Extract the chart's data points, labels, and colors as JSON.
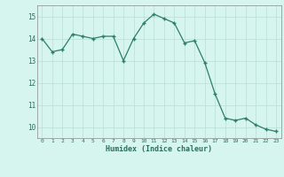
{
  "x": [
    0,
    1,
    2,
    3,
    4,
    5,
    6,
    7,
    8,
    9,
    10,
    11,
    12,
    13,
    14,
    15,
    16,
    17,
    18,
    19,
    20,
    21,
    22,
    23
  ],
  "y": [
    14.0,
    13.4,
    13.5,
    14.2,
    14.1,
    14.0,
    14.1,
    14.1,
    13.0,
    14.0,
    14.7,
    15.1,
    14.9,
    14.7,
    13.8,
    13.9,
    12.9,
    11.5,
    10.4,
    10.3,
    10.4,
    10.1,
    9.9,
    9.8
  ],
  "title": "",
  "xlabel": "Humidex (Indice chaleur)",
  "ylabel": "",
  "xlim": [
    -0.5,
    23.5
  ],
  "ylim": [
    9.5,
    15.5
  ],
  "yticks": [
    10,
    11,
    12,
    13,
    14,
    15
  ],
  "xticks": [
    0,
    1,
    2,
    3,
    4,
    5,
    6,
    7,
    8,
    9,
    10,
    11,
    12,
    13,
    14,
    15,
    16,
    17,
    18,
    19,
    20,
    21,
    22,
    23
  ],
  "line_color": "#2d7d6d",
  "marker_color": "#2d7d6d",
  "bg_color": "#d6f5ee",
  "grid_color": "#b8ddd6",
  "figsize": [
    3.2,
    2.0
  ],
  "dpi": 100
}
